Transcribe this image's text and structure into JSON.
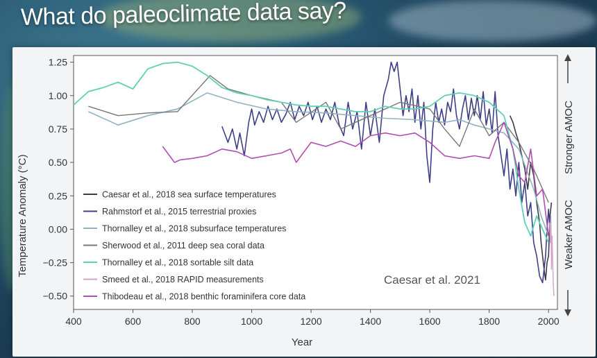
{
  "slide": {
    "title": "What do paleoclimate data say?"
  },
  "chart_data": {
    "type": "line",
    "title": "",
    "xlabel": "Year",
    "ylabel": "Temperature Anomaly (°C)",
    "xlim": [
      400,
      2030
    ],
    "ylim": [
      -0.6,
      1.3
    ],
    "xticks": [
      400,
      600,
      800,
      1000,
      1200,
      1400,
      1600,
      1800,
      2000
    ],
    "yticks": [
      1.25,
      1.0,
      0.75,
      0.5,
      0.25,
      0.0,
      -0.25,
      -0.5
    ],
    "ytick_labels": [
      "1.25",
      "1.00",
      "0.75",
      "0.50",
      "0.25",
      "0.00",
      "−0.25",
      "−0.50"
    ],
    "right_label_top": "Stronger AMOC",
    "right_label_bottom": "Weaker AMOC",
    "annotation": "Caesar et al. 2021",
    "legend_position": "lower-left",
    "grid": false,
    "series": [
      {
        "name": "Caesar et al., 2018 sea surface temperatures",
        "color": "#3a3a4a",
        "width": 1.6,
        "x": [
          1870,
          1880,
          1890,
          1900,
          1910,
          1920,
          1930,
          1940,
          1950,
          1960,
          1970,
          1975,
          1980,
          1985,
          1990,
          1995,
          2000,
          2005,
          2010
        ],
        "y": [
          0.85,
          0.8,
          0.72,
          0.65,
          0.55,
          0.45,
          0.3,
          0.5,
          0.4,
          0.2,
          0.05,
          -0.1,
          -0.2,
          -0.3,
          -0.38,
          -0.25,
          -0.2,
          0.1,
          0.2
        ]
      },
      {
        "name": "Rahmstorf et al., 2015 terrestrial proxies",
        "color": "#3d3f86",
        "width": 1.6,
        "x": [
          900,
          920,
          935,
          950,
          960,
          975,
          990,
          1000,
          1010,
          1025,
          1040,
          1055,
          1070,
          1085,
          1100,
          1115,
          1130,
          1145,
          1160,
          1175,
          1190,
          1205,
          1220,
          1235,
          1250,
          1265,
          1280,
          1295,
          1310,
          1325,
          1340,
          1355,
          1370,
          1385,
          1400,
          1415,
          1430,
          1445,
          1460,
          1470,
          1480,
          1490,
          1500,
          1510,
          1520,
          1530,
          1540,
          1550,
          1560,
          1570,
          1580,
          1590,
          1600,
          1610,
          1620,
          1630,
          1640,
          1650,
          1660,
          1670,
          1680,
          1690,
          1700,
          1710,
          1720,
          1730,
          1740,
          1750,
          1760,
          1770,
          1780,
          1790,
          1800,
          1810,
          1820,
          1830,
          1840,
          1850,
          1860,
          1870,
          1880,
          1890,
          1900,
          1910,
          1920,
          1930,
          1940,
          1950,
          1960,
          1970,
          1980,
          1990,
          1995,
          2000,
          2005
        ],
        "y": [
          0.77,
          0.65,
          0.75,
          0.6,
          0.72,
          0.55,
          0.8,
          0.9,
          0.78,
          0.88,
          0.8,
          0.92,
          0.82,
          0.9,
          0.8,
          0.86,
          0.95,
          0.82,
          0.92,
          0.85,
          0.95,
          0.82,
          0.92,
          0.8,
          0.9,
          0.82,
          0.95,
          0.78,
          0.7,
          0.95,
          0.75,
          0.88,
          0.6,
          0.95,
          0.7,
          0.9,
          0.65,
          1.0,
          1.12,
          1.25,
          1.18,
          1.25,
          1.05,
          0.85,
          1.0,
          0.88,
          1.05,
          0.8,
          1.0,
          0.75,
          0.95,
          0.55,
          0.35,
          0.75,
          0.95,
          0.8,
          0.9,
          0.78,
          0.95,
          0.88,
          1.05,
          0.85,
          0.75,
          0.9,
          1.0,
          0.82,
          0.98,
          0.85,
          1.0,
          0.82,
          1.03,
          0.78,
          0.9,
          0.72,
          1.03,
          0.7,
          0.55,
          0.4,
          0.6,
          0.3,
          0.45,
          0.25,
          0.5,
          0.2,
          0.35,
          0.1,
          0.2,
          -0.1,
          -0.2,
          -0.35,
          -0.4,
          -0.2,
          0.0,
          0.15,
          0.0
        ]
      },
      {
        "name": "Thornalley et al., 2018 subsurface temperatures",
        "color": "#8fb3c2",
        "width": 1.6,
        "x": [
          450,
          550,
          650,
          750,
          850,
          950,
          1050,
          1150,
          1250,
          1350,
          1450,
          1550,
          1650,
          1700,
          1750,
          1800,
          1850,
          1900,
          1950,
          1975,
          2000
        ],
        "y": [
          0.88,
          0.78,
          0.85,
          0.9,
          1.02,
          0.95,
          0.9,
          0.88,
          0.87,
          0.85,
          0.83,
          0.82,
          0.8,
          0.82,
          0.78,
          0.75,
          0.72,
          0.6,
          0.3,
          0.1,
          -0.05
        ]
      },
      {
        "name": "Sherwood et al., 2011 deep sea coral data",
        "color": "#777777",
        "width": 1.4,
        "x": [
          450,
          550,
          650,
          750,
          860,
          920,
          1000,
          1100,
          1150,
          1250,
          1300,
          1400,
          1500,
          1600,
          1650,
          1700,
          1750,
          1800,
          1850,
          1900,
          1950,
          2000
        ],
        "y": [
          0.92,
          0.85,
          0.87,
          0.88,
          1.15,
          1.05,
          1.0,
          0.95,
          0.8,
          0.95,
          0.75,
          0.85,
          0.95,
          0.9,
          0.75,
          0.62,
          0.9,
          0.7,
          0.8,
          0.65,
          0.45,
          0.2
        ]
      },
      {
        "name": "Thornalley et al., 2018 sortable silt data",
        "color": "#5fd0b4",
        "width": 1.8,
        "x": [
          400,
          450,
          500,
          550,
          600,
          650,
          700,
          750,
          800,
          850,
          900,
          950,
          1000,
          1050,
          1100,
          1150,
          1200,
          1250,
          1300,
          1350,
          1400,
          1450,
          1500,
          1550,
          1600,
          1650,
          1700,
          1750,
          1800,
          1850,
          1880,
          1900,
          1920,
          1940,
          1960,
          1980,
          2000
        ],
        "y": [
          0.93,
          1.03,
          1.06,
          1.1,
          1.05,
          1.2,
          1.24,
          1.25,
          1.22,
          1.15,
          1.06,
          1.02,
          1.0,
          0.97,
          0.95,
          0.93,
          0.92,
          0.92,
          0.9,
          0.88,
          0.88,
          0.92,
          0.9,
          0.9,
          0.92,
          1.0,
          1.02,
          1.0,
          0.95,
          0.85,
          0.6,
          0.3,
          0.05,
          -0.05,
          0.1,
          0.0,
          -0.1
        ]
      },
      {
        "name": "Smeed et al., 2018 RAPID measurements",
        "color": "#cfa3cc",
        "width": 1.4,
        "x": [
          2004,
          2006,
          2008,
          2010,
          2012,
          2014,
          2016,
          2018
        ],
        "y": [
          0.05,
          -0.1,
          0.1,
          -0.3,
          -0.05,
          -0.25,
          -0.4,
          -0.5
        ]
      },
      {
        "name": "Thibodeau et al., 2018 benthic foraminifera core data",
        "color": "#b04db0",
        "width": 1.6,
        "x": [
          700,
          740,
          760,
          800,
          850,
          900,
          950,
          1000,
          1050,
          1100,
          1130,
          1150,
          1200,
          1250,
          1300,
          1350,
          1400,
          1450,
          1500,
          1550,
          1600,
          1650,
          1700,
          1750,
          1800,
          1820,
          1850,
          1880,
          1900,
          1920,
          1940,
          1960,
          1980,
          2000
        ],
        "y": [
          0.62,
          0.5,
          0.52,
          0.53,
          0.55,
          0.6,
          0.58,
          0.53,
          0.55,
          0.57,
          0.6,
          0.5,
          0.65,
          0.62,
          0.66,
          0.62,
          0.7,
          0.72,
          0.7,
          0.72,
          0.65,
          0.55,
          0.53,
          0.55,
          0.53,
          0.65,
          0.8,
          0.6,
          0.4,
          0.35,
          0.6,
          0.25,
          0.3,
          -0.05
        ]
      }
    ]
  }
}
